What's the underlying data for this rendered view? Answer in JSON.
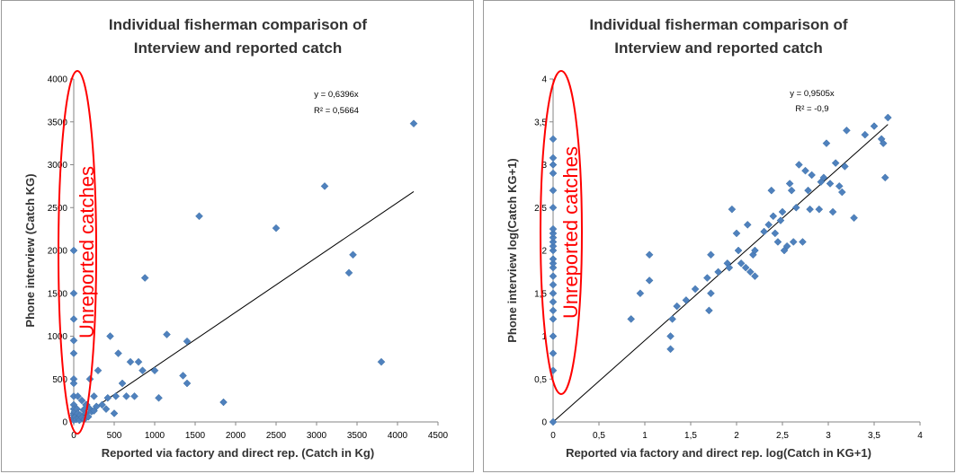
{
  "chart_data": [
    {
      "type": "scatter",
      "title_line1": "Individual fisherman comparison of",
      "title_line2": "Interview and reported catch",
      "xlabel": "Reported via factory and direct rep. (Catch in Kg)",
      "ylabel": "Phone interview (Catch  KG)",
      "xlim": [
        0,
        4500
      ],
      "ylim": [
        0,
        4000
      ],
      "x_ticks": [
        "0",
        "500",
        "1000",
        "1500",
        "2000",
        "2500",
        "3000",
        "3500",
        "4000",
        "4500"
      ],
      "y_ticks": [
        "0",
        "500",
        "1000",
        "1500",
        "2000",
        "2500",
        "3000",
        "3500",
        "4000"
      ],
      "trend_equation": "y = 0,6396x",
      "r_squared": "R² = 0,5664",
      "trend_slope": 0.6396,
      "annotation": "Unreported catches",
      "colors": {
        "points": "#4f81bd",
        "trendline": "#000000",
        "annotation": "#ff0000",
        "axis": "#868686"
      },
      "points": [
        [
          0,
          2000
        ],
        [
          0,
          1500
        ],
        [
          0,
          1200
        ],
        [
          0,
          950
        ],
        [
          0,
          800
        ],
        [
          0,
          500
        ],
        [
          0,
          450
        ],
        [
          0,
          300
        ],
        [
          0,
          200
        ],
        [
          0,
          150
        ],
        [
          0,
          100
        ],
        [
          0,
          80
        ],
        [
          0,
          50
        ],
        [
          0,
          20
        ],
        [
          10,
          120
        ],
        [
          20,
          60
        ],
        [
          30,
          30
        ],
        [
          40,
          150
        ],
        [
          50,
          100
        ],
        [
          60,
          40
        ],
        [
          70,
          20
        ],
        [
          80,
          80
        ],
        [
          100,
          50
        ],
        [
          120,
          140
        ],
        [
          130,
          30
        ],
        [
          150,
          100
        ],
        [
          160,
          200
        ],
        [
          180,
          60
        ],
        [
          200,
          150
        ],
        [
          220,
          120
        ],
        [
          250,
          130
        ],
        [
          50,
          300
        ],
        [
          100,
          250
        ],
        [
          150,
          200
        ],
        [
          200,
          500
        ],
        [
          250,
          300
        ],
        [
          280,
          180
        ],
        [
          300,
          600
        ],
        [
          350,
          200
        ],
        [
          400,
          150
        ],
        [
          420,
          280
        ],
        [
          450,
          1000
        ],
        [
          500,
          100
        ],
        [
          520,
          300
        ],
        [
          550,
          800
        ],
        [
          600,
          450
        ],
        [
          650,
          300
        ],
        [
          700,
          700
        ],
        [
          750,
          300
        ],
        [
          800,
          700
        ],
        [
          850,
          600
        ],
        [
          880,
          1680
        ],
        [
          1000,
          600
        ],
        [
          1050,
          280
        ],
        [
          1150,
          1020
        ],
        [
          1350,
          540
        ],
        [
          1400,
          940
        ],
        [
          1400,
          450
        ],
        [
          1550,
          2400
        ],
        [
          1850,
          230
        ],
        [
          2500,
          2260
        ],
        [
          3100,
          2750
        ],
        [
          3400,
          1740
        ],
        [
          3450,
          1950
        ],
        [
          3800,
          700
        ],
        [
          4200,
          3480
        ]
      ]
    },
    {
      "type": "scatter",
      "title_line1": "Individual fisherman comparison of",
      "title_line2": "Interview and reported catch",
      "xlabel": "Reported via factory and direct rep. log(Catch in KG+1)",
      "ylabel": "Phone interview log(Catch  KG+1)",
      "xlim": [
        0,
        4
      ],
      "ylim": [
        0,
        4
      ],
      "x_ticks": [
        "0",
        "0,5",
        "1",
        "1,5",
        "2",
        "2,5",
        "3",
        "3,5",
        "4"
      ],
      "y_ticks": [
        "0",
        "0,5",
        "1",
        "1,5",
        "2",
        "2,5",
        "3",
        "3,5",
        "4"
      ],
      "trend_equation": "y = 0,9505x",
      "r_squared": "R² = -0,9",
      "trend_slope": 0.9505,
      "annotation": "Unreported catches",
      "colors": {
        "points": "#4f81bd",
        "trendline": "#000000",
        "annotation": "#ff0000",
        "axis": "#868686"
      },
      "points": [
        [
          0,
          0
        ],
        [
          0,
          0.6
        ],
        [
          0,
          0.8
        ],
        [
          0,
          1.0
        ],
        [
          0,
          1.2
        ],
        [
          0,
          1.3
        ],
        [
          0,
          1.4
        ],
        [
          0,
          1.5
        ],
        [
          0,
          1.6
        ],
        [
          0,
          1.7
        ],
        [
          0,
          1.8
        ],
        [
          0,
          1.85
        ],
        [
          0,
          1.9
        ],
        [
          0,
          2.0
        ],
        [
          0,
          2.05
        ],
        [
          0,
          2.1
        ],
        [
          0,
          2.15
        ],
        [
          0,
          2.2
        ],
        [
          0,
          2.25
        ],
        [
          0,
          2.5
        ],
        [
          0,
          2.7
        ],
        [
          0,
          2.9
        ],
        [
          0,
          3.0
        ],
        [
          0,
          3.08
        ],
        [
          0,
          3.3
        ],
        [
          0.85,
          1.2
        ],
        [
          0.95,
          1.5
        ],
        [
          1.05,
          1.65
        ],
        [
          1.05,
          1.95
        ],
        [
          1.28,
          1.0
        ],
        [
          1.28,
          0.85
        ],
        [
          1.3,
          1.2
        ],
        [
          1.35,
          1.35
        ],
        [
          1.45,
          1.42
        ],
        [
          1.55,
          1.55
        ],
        [
          1.68,
          1.68
        ],
        [
          1.7,
          1.3
        ],
        [
          1.72,
          1.5
        ],
        [
          1.72,
          1.95
        ],
        [
          1.8,
          1.75
        ],
        [
          1.9,
          1.85
        ],
        [
          1.92,
          1.8
        ],
        [
          1.95,
          2.48
        ],
        [
          2.0,
          2.2
        ],
        [
          2.02,
          2.0
        ],
        [
          2.05,
          1.85
        ],
        [
          2.1,
          1.8
        ],
        [
          2.12,
          2.3
        ],
        [
          2.15,
          1.75
        ],
        [
          2.18,
          1.95
        ],
        [
          2.2,
          2.0
        ],
        [
          2.2,
          1.7
        ],
        [
          2.3,
          2.22
        ],
        [
          2.35,
          2.3
        ],
        [
          2.38,
          2.7
        ],
        [
          2.4,
          2.4
        ],
        [
          2.42,
          2.2
        ],
        [
          2.45,
          2.1
        ],
        [
          2.48,
          2.35
        ],
        [
          2.5,
          2.45
        ],
        [
          2.52,
          2.0
        ],
        [
          2.55,
          2.05
        ],
        [
          2.58,
          2.78
        ],
        [
          2.6,
          2.7
        ],
        [
          2.62,
          2.1
        ],
        [
          2.65,
          2.5
        ],
        [
          2.68,
          3.0
        ],
        [
          2.72,
          2.1
        ],
        [
          2.75,
          2.93
        ],
        [
          2.78,
          2.7
        ],
        [
          2.8,
          2.48
        ],
        [
          2.82,
          2.88
        ],
        [
          2.9,
          2.48
        ],
        [
          2.92,
          2.8
        ],
        [
          2.95,
          2.85
        ],
        [
          2.98,
          3.25
        ],
        [
          3.02,
          2.78
        ],
        [
          3.05,
          2.45
        ],
        [
          3.08,
          3.02
        ],
        [
          3.12,
          2.75
        ],
        [
          3.15,
          2.68
        ],
        [
          3.18,
          2.98
        ],
        [
          3.2,
          3.4
        ],
        [
          3.28,
          2.38
        ],
        [
          3.4,
          3.35
        ],
        [
          3.5,
          3.45
        ],
        [
          3.58,
          3.3
        ],
        [
          3.6,
          3.25
        ],
        [
          3.62,
          2.85
        ],
        [
          3.65,
          3.55
        ]
      ]
    }
  ]
}
